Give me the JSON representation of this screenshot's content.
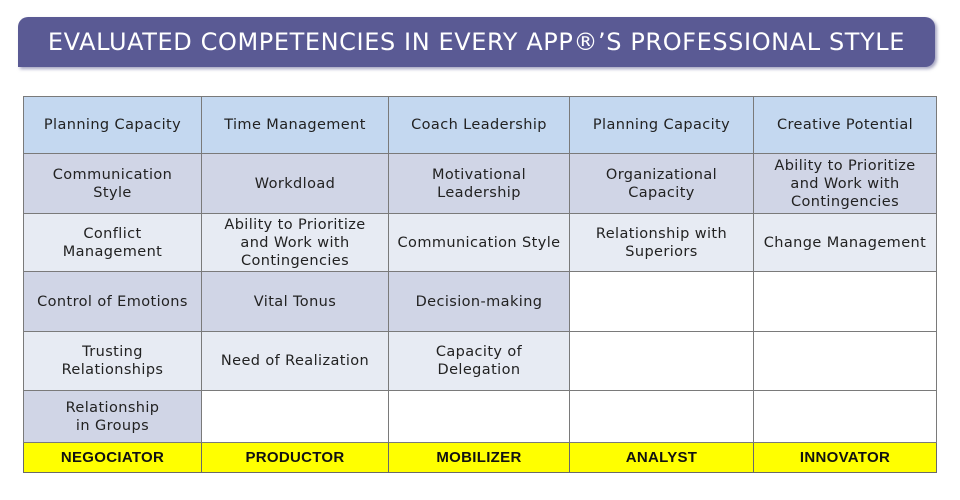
{
  "title": "EVALUATED COMPETENCIES IN EVERY APP®’S PROFESSIONAL STYLE",
  "colors": {
    "banner": "#5a5a94",
    "top_row": "#c4d8f0",
    "dark_row": "#d0d5e6",
    "light_row": "#e7ebf3",
    "footer": "#ffff00"
  },
  "styles": [
    "NEGOCIATOR",
    "PRODUCTOR",
    "MOBILIZER",
    "ANALYST",
    "INNOVATOR"
  ],
  "rows": [
    [
      "Planning Capacity",
      "Time Management",
      "Coach Leadership",
      "Planning Capacity",
      "Creative Potential"
    ],
    [
      "Communication\nStyle",
      "Workdload",
      "Motivational\nLeadership",
      "Organizational\nCapacity",
      "Ability to Prioritize\nand Work with\nContingencies"
    ],
    [
      "Conflict\nManagement",
      "Ability to Prioritize\nand Work with\nContingencies",
      "Communication Style",
      "Relationship with\nSuperiors",
      "Change Management"
    ],
    [
      "Control of Emotions",
      "Vital Tonus",
      "Decision-making",
      "",
      ""
    ],
    [
      "Trusting\nRelationships",
      "Need of Realization",
      "Capacity of\nDelegation",
      "",
      ""
    ],
    [
      "Relationship\nin Groups",
      "",
      "",
      "",
      ""
    ]
  ]
}
